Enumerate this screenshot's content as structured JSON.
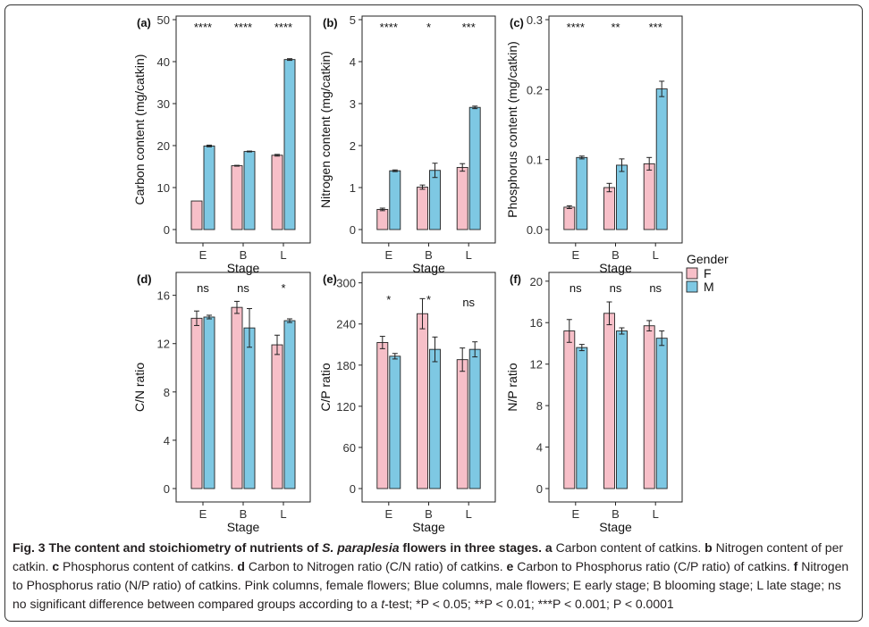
{
  "colors": {
    "female": "#f7bfc8",
    "male": "#7ec8e3",
    "stroke": "#222222",
    "frame": "#333333"
  },
  "chart_data": [
    {
      "panel_label": "(a)",
      "type": "bar",
      "categories": [
        "E",
        "B",
        "L"
      ],
      "xlabel": "Stage",
      "ylabel": "Carbon content (mg/catkin)",
      "ylim": [
        0,
        50
      ],
      "ticks": [
        "0",
        "10",
        "20",
        "30",
        "40",
        "50"
      ],
      "series": [
        {
          "name": "F",
          "values": [
            6.8,
            15.2,
            17.7
          ],
          "errors": [
            0,
            0.1,
            0.2
          ]
        },
        {
          "name": "M",
          "values": [
            19.9,
            18.6,
            40.5
          ],
          "errors": [
            0.2,
            0.1,
            0.2
          ]
        }
      ],
      "significance": [
        "****",
        "****",
        "****"
      ]
    },
    {
      "panel_label": "(b)",
      "type": "bar",
      "categories": [
        "E",
        "B",
        "L"
      ],
      "xlabel": "Stage",
      "ylabel": "Nitrogen content (mg/catkin)",
      "ylim": [
        0,
        5
      ],
      "ticks": [
        "0",
        "1",
        "2",
        "3",
        "4",
        "5"
      ],
      "series": [
        {
          "name": "F",
          "values": [
            0.48,
            1.01,
            1.48
          ],
          "errors": [
            0.03,
            0.05,
            0.09
          ]
        },
        {
          "name": "M",
          "values": [
            1.4,
            1.41,
            2.91
          ],
          "errors": [
            0.02,
            0.17,
            0.03
          ]
        }
      ],
      "significance": [
        "****",
        "*",
        "***"
      ]
    },
    {
      "panel_label": "(c)",
      "type": "bar",
      "categories": [
        "E",
        "B",
        "L"
      ],
      "xlabel": "Stage",
      "ylabel": "Phosphorus content (mg/catkin)",
      "ylim": [
        0,
        0.3
      ],
      "ticks": [
        "0.0",
        "0.1",
        "0.2",
        "0.3"
      ],
      "series": [
        {
          "name": "F",
          "values": [
            0.032,
            0.06,
            0.094
          ],
          "errors": [
            0.002,
            0.006,
            0.009
          ]
        },
        {
          "name": "M",
          "values": [
            0.103,
            0.092,
            0.201
          ],
          "errors": [
            0.002,
            0.009,
            0.011
          ]
        }
      ],
      "significance": [
        "****",
        "**",
        "***"
      ]
    },
    {
      "panel_label": "(d)",
      "type": "bar",
      "categories": [
        "E",
        "B",
        "L"
      ],
      "xlabel": "Stage",
      "ylabel": "C/N ratio",
      "ylim": [
        0,
        17.6
      ],
      "ticks": [
        "0",
        "4",
        "8",
        "12",
        "16"
      ],
      "series": [
        {
          "name": "F",
          "values": [
            14.1,
            15.0,
            11.9
          ],
          "errors": [
            0.6,
            0.5,
            0.8
          ]
        },
        {
          "name": "M",
          "values": [
            14.2,
            13.3,
            13.9
          ],
          "errors": [
            0.15,
            1.6,
            0.15
          ]
        }
      ],
      "significance": [
        "ns",
        "ns",
        "*"
      ]
    },
    {
      "panel_label": "(e)",
      "type": "bar",
      "categories": [
        "E",
        "B",
        "L"
      ],
      "xlabel": "Stage",
      "ylabel": "C/P ratio",
      "ylim": [
        0,
        310
      ],
      "ticks": [
        "0",
        "60",
        "120",
        "180",
        "240",
        "300"
      ],
      "series": [
        {
          "name": "F",
          "values": [
            213,
            255,
            188
          ],
          "errors": [
            9,
            22,
            17
          ]
        },
        {
          "name": "M",
          "values": [
            193,
            203,
            203
          ],
          "errors": [
            4,
            18,
            11
          ]
        }
      ],
      "significance": [
        "*",
        "*",
        "ns"
      ]
    },
    {
      "panel_label": "(f)",
      "type": "bar",
      "categories": [
        "E",
        "B",
        "L"
      ],
      "xlabel": "Stage",
      "ylabel": "N/P ratio",
      "ylim": [
        0,
        20.5
      ],
      "ticks": [
        "0",
        "4",
        "8",
        "12",
        "16",
        "20"
      ],
      "series": [
        {
          "name": "F",
          "values": [
            15.2,
            16.9,
            15.7
          ],
          "errors": [
            1.1,
            1.1,
            0.5
          ]
        },
        {
          "name": "M",
          "values": [
            13.6,
            15.2,
            14.5
          ],
          "errors": [
            0.3,
            0.3,
            0.7
          ]
        }
      ],
      "significance": [
        "ns",
        "ns",
        "ns"
      ]
    }
  ],
  "legend": {
    "title": "Gender",
    "items": [
      "F",
      "M"
    ]
  },
  "caption": {
    "fig_label": "Fig. 3",
    "title_pre": "The content and stoichiometry of nutrients of ",
    "title_species": "S. paraplesia",
    "title_post": " flowers in three stages.",
    "parts": [
      {
        "label": "a",
        "text": "Carbon content of catkins."
      },
      {
        "label": "b",
        "text": "Nitrogen content of per catkin."
      },
      {
        "label": "c",
        "text": "Phosphorus content of catkins."
      },
      {
        "label": "d",
        "text": "Carbon to Nitrogen ratio (C/N ratio) of catkins."
      },
      {
        "label": "e",
        "text": "Carbon to Phosphorus ratio (C/P ratio) of catkins."
      },
      {
        "label": "f",
        "text": "Nitrogen to Phosphorus ratio (N/P ratio) of catkins. Pink columns, female flowers; Blue columns, male flowers; E early stage; B blooming stage; L late stage; ns no significant difference between compared groups according to a"
      }
    ],
    "ttest": "t",
    "ttest_suffix": "-test;",
    "sig_levels": [
      "*P < 0.05;",
      "**P < 0.01;",
      "***P < 0.001;",
      "P < 0.0001"
    ]
  }
}
